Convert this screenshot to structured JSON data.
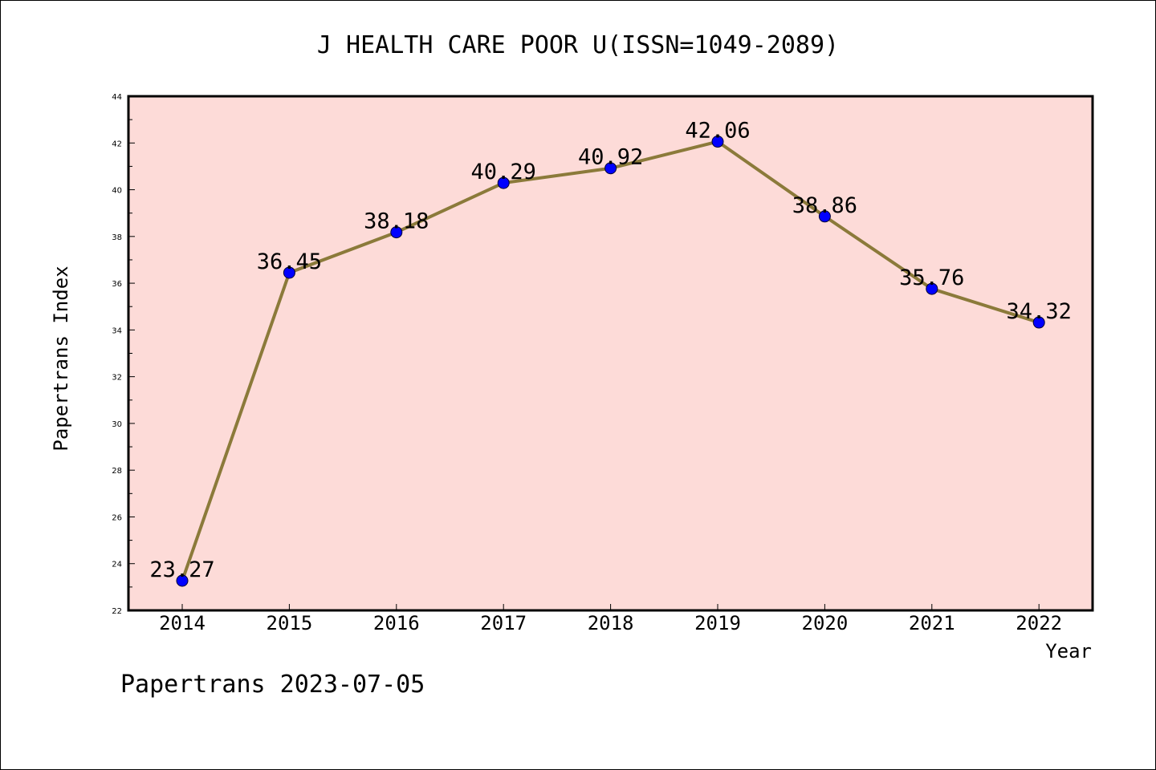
{
  "chart_data": {
    "type": "line",
    "title": "J HEALTH CARE POOR U(ISSN=1049-2089)",
    "xlabel": "Year",
    "ylabel": "Papertrans Index",
    "categories": [
      "2014",
      "2015",
      "2016",
      "2017",
      "2018",
      "2019",
      "2020",
      "2021",
      "2022"
    ],
    "values": [
      23.27,
      36.45,
      38.18,
      40.29,
      40.92,
      42.06,
      38.86,
      35.76,
      34.32
    ],
    "data_labels": [
      "23.27",
      "36.45",
      "38.18",
      "40.29",
      "40.92",
      "42.06",
      "38.86",
      "35.76",
      "34.32"
    ],
    "ylim": [
      22,
      44
    ],
    "y_ticks": [
      "22",
      "24",
      "26",
      "28",
      "30",
      "32",
      "34",
      "36",
      "38",
      "40",
      "42",
      "44"
    ],
    "grid": false,
    "colors": {
      "plot_background": "#fddbd8",
      "line": "#8b7a3a",
      "marker": "#0000ff",
      "axis": "#000000"
    }
  },
  "footer": {
    "text": "Papertrans 2023-07-05"
  }
}
